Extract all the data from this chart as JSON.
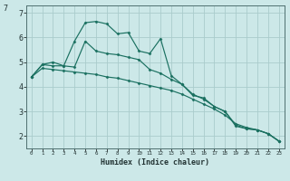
{
  "xlabel": "Humidex (Indice chaleur)",
  "background_color": "#cce8e8",
  "grid_color": "#aacccc",
  "line_color": "#1a7060",
  "xlim": [
    -0.5,
    23.5
  ],
  "ylim": [
    1.5,
    7.3
  ],
  "xticks": [
    0,
    1,
    2,
    3,
    4,
    5,
    6,
    7,
    8,
    9,
    10,
    11,
    12,
    13,
    14,
    15,
    16,
    17,
    18,
    19,
    20,
    21,
    22,
    23
  ],
  "yticks": [
    2,
    3,
    4,
    5,
    6,
    7
  ],
  "series": [
    {
      "x": [
        0,
        1,
        2,
        3,
        4,
        5,
        6,
        7,
        8,
        9,
        10,
        11,
        12,
        13,
        14,
        15,
        16,
        17,
        18,
        19,
        20,
        21,
        22,
        23
      ],
      "y": [
        4.4,
        4.9,
        5.0,
        4.85,
        5.85,
        6.6,
        6.65,
        6.55,
        6.15,
        6.2,
        5.45,
        5.35,
        5.95,
        4.45,
        4.1,
        3.65,
        3.55,
        3.2,
        3.0,
        2.4,
        2.3,
        2.25,
        2.1,
        1.8
      ]
    },
    {
      "x": [
        0,
        1,
        2,
        3,
        4,
        5,
        6,
        7,
        8,
        9,
        10,
        11,
        12,
        13,
        14,
        15,
        16,
        17,
        18,
        19,
        20,
        21,
        22,
        23
      ],
      "y": [
        4.4,
        4.9,
        4.85,
        4.85,
        4.8,
        5.85,
        5.45,
        5.35,
        5.3,
        5.2,
        5.1,
        4.7,
        4.55,
        4.3,
        4.1,
        3.7,
        3.5,
        3.2,
        3.0,
        2.45,
        2.3,
        2.25,
        2.1,
        1.8
      ]
    },
    {
      "x": [
        0,
        1,
        2,
        3,
        4,
        5,
        6,
        7,
        8,
        9,
        10,
        11,
        12,
        13,
        14,
        15,
        16,
        17,
        18,
        19,
        20,
        21,
        22,
        23
      ],
      "y": [
        4.4,
        4.75,
        4.7,
        4.65,
        4.6,
        4.55,
        4.5,
        4.4,
        4.35,
        4.25,
        4.15,
        4.05,
        3.95,
        3.85,
        3.7,
        3.5,
        3.3,
        3.1,
        2.85,
        2.5,
        2.35,
        2.25,
        2.1,
        1.8
      ]
    }
  ]
}
